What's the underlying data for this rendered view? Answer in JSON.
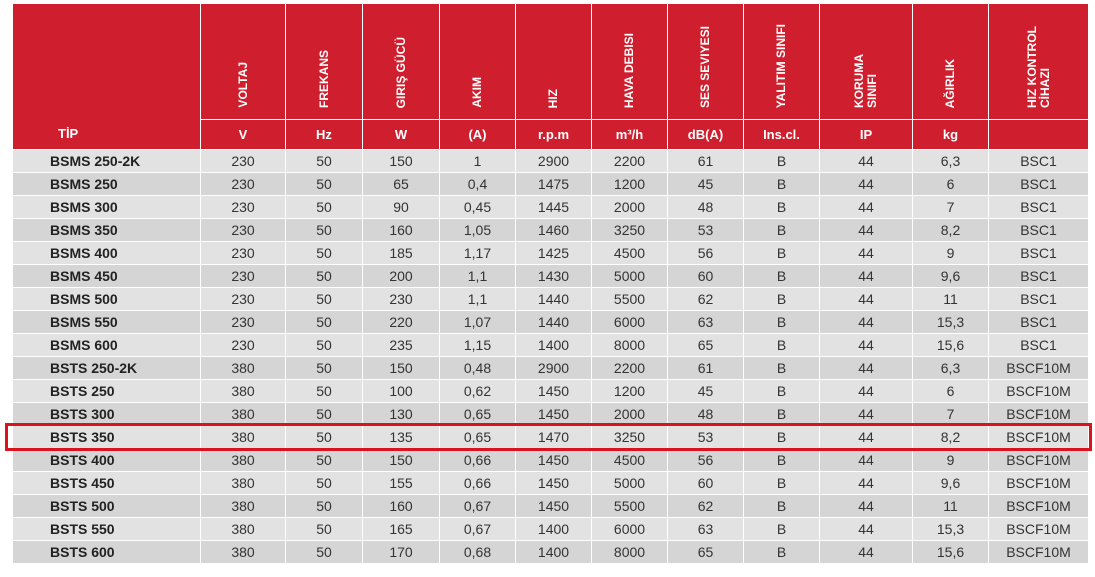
{
  "table": {
    "tip_label": "TİP",
    "headers": [
      {
        "label": "VOLTAJ",
        "unit": "V"
      },
      {
        "label": "FREKANS",
        "unit": "Hz"
      },
      {
        "label": "GIRIŞ GÜCÜ",
        "unit": "W"
      },
      {
        "label": "AKIM",
        "unit": "(A)"
      },
      {
        "label": "HIZ",
        "unit": "r.p.m"
      },
      {
        "label": "HAVA DEBISI",
        "unit": "m³/h"
      },
      {
        "label": "SES SEVIYESI",
        "unit": "dB(A)"
      },
      {
        "label": "YALITIM SINIFI",
        "unit": "Ins.cl."
      },
      {
        "label": "KORUMA\nSINIFI",
        "unit": "IP"
      },
      {
        "label": "AĞIRLIK",
        "unit": "kg"
      },
      {
        "label": "HIZ KONTROL\nCİHAZI",
        "unit": ""
      }
    ],
    "rows": [
      [
        "BSMS 250-2K",
        "230",
        "50",
        "150",
        "1",
        "2900",
        "2200",
        "61",
        "B",
        "44",
        "6,3",
        "BSC1"
      ],
      [
        "BSMS 250",
        "230",
        "50",
        "65",
        "0,4",
        "1475",
        "1200",
        "45",
        "B",
        "44",
        "6",
        "BSC1"
      ],
      [
        "BSMS 300",
        "230",
        "50",
        "90",
        "0,45",
        "1445",
        "2000",
        "48",
        "B",
        "44",
        "7",
        "BSC1"
      ],
      [
        "BSMS 350",
        "230",
        "50",
        "160",
        "1,05",
        "1460",
        "3250",
        "53",
        "B",
        "44",
        "8,2",
        "BSC1"
      ],
      [
        "BSMS 400",
        "230",
        "50",
        "185",
        "1,17",
        "1425",
        "4500",
        "56",
        "B",
        "44",
        "9",
        "BSC1"
      ],
      [
        "BSMS 450",
        "230",
        "50",
        "200",
        "1,1",
        "1430",
        "5000",
        "60",
        "B",
        "44",
        "9,6",
        "BSC1"
      ],
      [
        "BSMS 500",
        "230",
        "50",
        "230",
        "1,1",
        "1440",
        "5500",
        "62",
        "B",
        "44",
        "11",
        "BSC1"
      ],
      [
        "BSMS 550",
        "230",
        "50",
        "220",
        "1,07",
        "1440",
        "6000",
        "63",
        "B",
        "44",
        "15,3",
        "BSC1"
      ],
      [
        "BSMS 600",
        "230",
        "50",
        "235",
        "1,15",
        "1400",
        "8000",
        "65",
        "B",
        "44",
        "15,6",
        "BSC1"
      ],
      [
        "BSTS 250-2K",
        "380",
        "50",
        "150",
        "0,48",
        "2900",
        "2200",
        "61",
        "B",
        "44",
        "6,3",
        "BSCF10M"
      ],
      [
        "BSTS 250",
        "380",
        "50",
        "100",
        "0,62",
        "1450",
        "1200",
        "45",
        "B",
        "44",
        "6",
        "BSCF10M"
      ],
      [
        "BSTS 300",
        "380",
        "50",
        "130",
        "0,65",
        "1450",
        "2000",
        "48",
        "B",
        "44",
        "7",
        "BSCF10M"
      ],
      [
        "BSTS 350",
        "380",
        "50",
        "135",
        "0,65",
        "1470",
        "3250",
        "53",
        "B",
        "44",
        "8,2",
        "BSCF10M"
      ],
      [
        "BSTS 400",
        "380",
        "50",
        "150",
        "0,66",
        "1450",
        "4500",
        "56",
        "B",
        "44",
        "9",
        "BSCF10M"
      ],
      [
        "BSTS 450",
        "380",
        "50",
        "155",
        "0,66",
        "1450",
        "5000",
        "60",
        "B",
        "44",
        "9,6",
        "BSCF10M"
      ],
      [
        "BSTS 500",
        "380",
        "50",
        "160",
        "0,67",
        "1450",
        "5500",
        "62",
        "B",
        "44",
        "11",
        "BSCF10M"
      ],
      [
        "BSTS 550",
        "380",
        "50",
        "165",
        "0,67",
        "1400",
        "6000",
        "63",
        "B",
        "44",
        "15,3",
        "BSCF10M"
      ],
      [
        "BSTS 600",
        "380",
        "50",
        "170",
        "0,68",
        "1400",
        "8000",
        "65",
        "B",
        "44",
        "15,6",
        "BSCF10M"
      ]
    ],
    "highlighted_row": "BSTS 350",
    "colors": {
      "header_red": "#cf1f2e",
      "highlight_border": "#d9141e",
      "row_light": "#e2e2e2",
      "row_dark": "#d5d5d5"
    }
  }
}
